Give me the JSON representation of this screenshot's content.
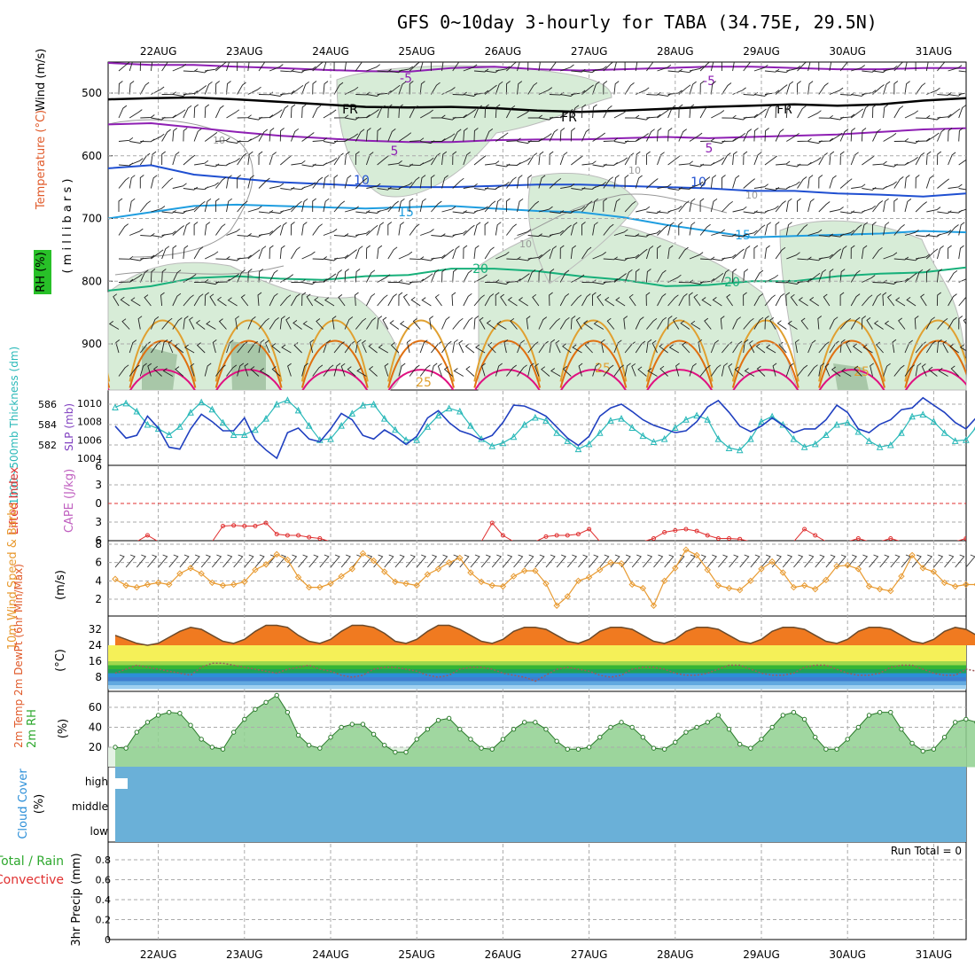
{
  "title": "GFS 0~10day 3-hourly for TABA (34.75E, 29.5N)",
  "dates": [
    "22AUG",
    "23AUG",
    "24AUG",
    "25AUG",
    "26AUG",
    "27AUG",
    "28AUG",
    "29AUG",
    "30AUG",
    "31AUG"
  ],
  "colors": {
    "grid": "#aaaaaa",
    "rh_fill": "#d7ecd7",
    "rh_fill2": "#a8c7a8",
    "t_minus5": "#8e1fb3",
    "t_fr": "#000000",
    "t5": "#8e1fb3",
    "t10": "#1f4fd1",
    "t15": "#1f9ee0",
    "t20": "#17b07a",
    "t25": "#e0a030",
    "t30": "#e07010",
    "t35": "#e01080",
    "slp": "#2040c0",
    "thick": "#28b8b8",
    "li": "#e03030",
    "wind": "#e89a30",
    "rh2m": "#2ea82e",
    "cloud": "#6ab0d8",
    "precip_conv": "#e03030"
  },
  "panels": {
    "upper": {
      "ylabel_wind": "Wind (m/s)",
      "ylabel_temp": "Temperature (°C)",
      "ylabel_rh": "RH (%)",
      "ylabel_mb": "( m i l l i b a r s )",
      "yticks": [
        "500",
        "600",
        "700",
        "800",
        "900"
      ],
      "contour_labels": [
        "-5",
        "-5",
        "FR",
        "FR",
        "FR",
        "5",
        "5",
        "10",
        "10",
        "15",
        "15",
        "20",
        "20",
        "25",
        "25",
        "25",
        "10",
        "10",
        "10",
        "10"
      ]
    },
    "slp": {
      "ylabel_thick": "1000~500mb Thickness (dm)",
      "ylabel_slp": "SLP (mb)",
      "yticks_left": [
        "586",
        "584",
        "582"
      ],
      "yticks_right": [
        "1010",
        "1008",
        "1006",
        "1004"
      ]
    },
    "cape": {
      "ylabel_li": "Lifted Index",
      "ylabel_cape": "CAPE (J/kg)",
      "yticks": [
        "-6",
        "-3",
        "0",
        "3",
        "6"
      ]
    },
    "wind10m": {
      "ylabel": "10m Wind Speed & Barbs",
      "ylabel_units": "(m/s)",
      "yticks": [
        "8",
        "6",
        "4",
        "2"
      ]
    },
    "temp2m": {
      "ylabel": "2m Temp 2m DewPt (6hr Min/Max)",
      "ylabel_units": "(°C)",
      "yticks": [
        "32",
        "24",
        "16",
        "8"
      ]
    },
    "rh2m": {
      "ylabel": "2m RH",
      "ylabel_units": "(%)",
      "yticks": [
        "60",
        "40",
        "20"
      ]
    },
    "cloud": {
      "ylabel": "Cloud Cover",
      "ylabel_units": "(%)",
      "levels": [
        "high",
        "middle",
        "low"
      ]
    },
    "precip": {
      "ylabel_total": "Total / Rain",
      "ylabel_conv": "Convective",
      "ylabel_units": "3hr Precip (mm)",
      "yticks": [
        "0.8",
        "0.6",
        "0.4",
        "0.2",
        "0"
      ],
      "run_total": "Run Total = 0"
    }
  },
  "chart_data": {
    "type": "line",
    "x_unit": "days since 22AUG 00Z",
    "slp_mb": [
      1007.5,
      1006.2,
      1006.5,
      1008.6,
      1007.3,
      1005.2,
      1005.0,
      1007.2,
      1008.8,
      1008.0,
      1007.0,
      1007.0,
      1008.4,
      1006.0,
      1004.9,
      1004.0,
      1006.8,
      1007.3,
      1006.1,
      1005.8,
      1007.2,
      1008.9,
      1008.2,
      1006.5,
      1006.1,
      1007.1,
      1006.4,
      1005.5,
      1006.4,
      1008.4,
      1009.2,
      1007.9,
      1007.0,
      1006.6,
      1006.0,
      1006.5,
      1007.9,
      1009.8,
      1009.7,
      1009.2,
      1008.6,
      1007.4,
      1006.2,
      1005.4,
      1006.4,
      1008.6,
      1009.5,
      1009.9,
      1009.1,
      1008.2,
      1007.6,
      1007.2,
      1006.8,
      1007.0,
      1008.0,
      1009.6,
      1010.3,
      1009.0,
      1007.5,
      1006.9,
      1007.5,
      1008.4,
      1007.6,
      1006.8,
      1007.2,
      1007.2,
      1008.2,
      1009.8,
      1009.0,
      1007.2,
      1006.8,
      1007.7,
      1008.2,
      1009.3,
      1009.5,
      1010.6,
      1009.8,
      1009.0,
      1007.9,
      1007.2,
      1008.5,
      1008.4
    ],
    "thickness_dm": [
      585.7,
      586.1,
      585.3,
      584.0,
      583.6,
      583.0,
      583.8,
      585.2,
      586.2,
      585.5,
      584.2,
      583.0,
      583.0,
      583.5,
      584.6,
      586.0,
      586.4,
      585.4,
      583.9,
      582.5,
      582.6,
      583.9,
      585.1,
      585.9,
      586.0,
      584.6,
      583.5,
      582.5,
      582.5,
      583.8,
      584.9,
      585.6,
      585.3,
      583.9,
      582.6,
      581.9,
      582.2,
      582.8,
      584.0,
      584.7,
      584.4,
      583.2,
      582.4,
      581.6,
      582.1,
      583.2,
      584.4,
      584.6,
      583.7,
      582.9,
      582.3,
      582.6,
      583.7,
      584.5,
      584.9,
      584.5,
      582.6,
      581.7,
      581.5,
      582.6,
      584.3,
      584.8,
      584.0,
      582.6,
      581.8,
      582.1,
      583.0,
      584.0,
      584.2,
      583.3,
      582.4,
      581.8,
      582.0,
      583.2,
      584.8,
      585.0,
      584.3,
      583.2,
      582.4,
      582.5,
      583.8,
      584.2
    ],
    "wind10m_ms": [
      4.2,
      3.5,
      3.3,
      3.6,
      3.8,
      3.6,
      4.8,
      5.4,
      4.8,
      3.8,
      3.5,
      3.6,
      3.9,
      5.2,
      5.8,
      6.9,
      6.3,
      4.4,
      3.3,
      3.3,
      3.7,
      4.5,
      5.3,
      7.0,
      6.2,
      5.0,
      3.9,
      3.7,
      3.5,
      4.7,
      5.3,
      6.0,
      6.5,
      4.9,
      3.9,
      3.5,
      3.4,
      4.5,
      5.1,
      5.1,
      3.7,
      1.3,
      2.3,
      4.0,
      4.4,
      5.2,
      6.0,
      5.9,
      3.6,
      3.2,
      1.3,
      4.0,
      5.4,
      7.4,
      6.8,
      5.2,
      3.5,
      3.2,
      3.0,
      4.0,
      5.3,
      6.1,
      4.9,
      3.3,
      3.5,
      3.1,
      4.1,
      5.6,
      5.7,
      5.3,
      3.4,
      3.1,
      2.9,
      4.5,
      6.8,
      5.4,
      5.0,
      3.8,
      3.4,
      3.6,
      3.6,
      3.2
    ],
    "temp2m_c": [
      29,
      27,
      25,
      24,
      25,
      28,
      31,
      33,
      32,
      29,
      26,
      25,
      27,
      31,
      34,
      34,
      33,
      29,
      26,
      25,
      27,
      31,
      34,
      34,
      33,
      30,
      26,
      25,
      27,
      31,
      34,
      34,
      32,
      29,
      26,
      25,
      27,
      31,
      33,
      33,
      32,
      29,
      26,
      25,
      27,
      31,
      33,
      33,
      32,
      29,
      26,
      25,
      27,
      31,
      33,
      33,
      32,
      29,
      26,
      25,
      27,
      31,
      33,
      33,
      32,
      29,
      26,
      25,
      27,
      31,
      33,
      33,
      32,
      29,
      26,
      25,
      27,
      31,
      33,
      32,
      29,
      27
    ],
    "dewpt2m_c": [
      10,
      12,
      14,
      13,
      12,
      11,
      10,
      9,
      13,
      15,
      15,
      14,
      13,
      12,
      11,
      10,
      12,
      13,
      14,
      12,
      11,
      9,
      8,
      9,
      12,
      13,
      13,
      12,
      11,
      9,
      8,
      9,
      12,
      13,
      13,
      12,
      10,
      9,
      8,
      6,
      9,
      12,
      13,
      12,
      11,
      9,
      8,
      9,
      12,
      13,
      13,
      12,
      10,
      9,
      9,
      10,
      12,
      14,
      14,
      12,
      10,
      9,
      9,
      10,
      13,
      14,
      14,
      12,
      10,
      9,
      9,
      10,
      13,
      14,
      14,
      12,
      10,
      9,
      9,
      12,
      11,
      10
    ],
    "rh2m_pct": [
      20,
      19,
      35,
      45,
      52,
      55,
      54,
      42,
      28,
      20,
      18,
      35,
      48,
      58,
      65,
      72,
      55,
      32,
      22,
      19,
      30,
      40,
      43,
      43,
      33,
      22,
      15,
      15,
      28,
      38,
      47,
      49,
      38,
      28,
      19,
      18,
      28,
      38,
      45,
      45,
      38,
      26,
      18,
      18,
      20,
      30,
      40,
      45,
      40,
      30,
      19,
      18,
      25,
      35,
      40,
      45,
      52,
      38,
      23,
      19,
      28,
      40,
      52,
      55,
      48,
      30,
      18,
      18,
      28,
      40,
      52,
      55,
      55,
      38,
      24,
      16,
      18,
      30,
      45,
      48,
      45,
      32
    ],
    "li_idx": [
      6,
      6,
      6,
      5,
      6,
      6,
      6,
      6,
      6,
      6,
      3.5,
      3.4,
      3.5,
      3.5,
      3.0,
      4.8,
      5.0,
      5.0,
      5.3,
      5.5,
      6,
      6,
      6,
      6,
      6,
      6,
      6,
      6,
      6,
      6,
      6,
      6,
      6,
      6,
      6,
      3,
      5,
      6,
      6,
      6,
      5.2,
      5,
      5,
      4.8,
      4,
      6,
      6,
      6,
      6,
      6,
      5.5,
      4.5,
      4.2,
      4.0,
      4.3,
      5.0,
      5.5,
      5.5,
      5.6,
      6,
      6,
      6,
      6,
      6,
      4,
      5,
      6,
      6,
      6,
      5.5,
      6,
      6,
      5.5,
      6,
      6,
      6,
      6,
      6,
      6,
      5.5,
      6,
      6
    ],
    "precip_mm": [
      0,
      0,
      0,
      0,
      0,
      0,
      0,
      0,
      0,
      0,
      0
    ],
    "cloud_cover_pct": {
      "high": 100,
      "middle": 100,
      "low": 100
    }
  }
}
